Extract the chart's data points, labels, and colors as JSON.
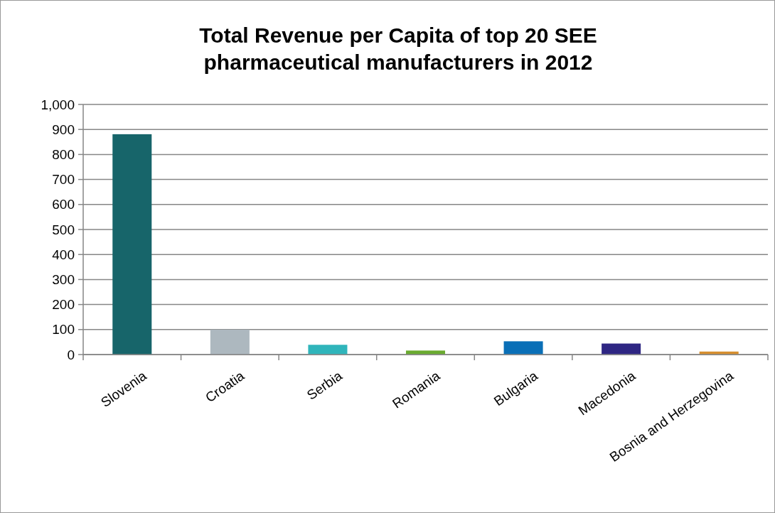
{
  "chart_data": {
    "type": "bar",
    "title": "Total Revenue per Capita of top 20 SEE pharmaceutical manufacturers in 2012",
    "categories": [
      "Slovenia",
      "Croatia",
      "Serbia",
      "Romania",
      "Bulgaria",
      "Macedonia",
      "Bosnia and Herzegovina"
    ],
    "values": [
      881,
      100,
      39,
      16,
      53,
      44,
      12
    ],
    "colors": [
      "#17656a",
      "#adb8bf",
      "#2fb5bb",
      "#6aab2f",
      "#0a6fb7",
      "#2e2683",
      "#d68e2e"
    ],
    "ylim": [
      0,
      1000
    ],
    "yticks": [
      0,
      {
        "value": 100,
        "label": "100"
      },
      {
        "value": 200,
        "label": "200"
      },
      {
        "value": 300,
        "label": "300"
      },
      {
        "value": 400,
        "label": "400"
      },
      {
        "value": 500,
        "label": "500"
      },
      {
        "value": 600,
        "label": "600"
      },
      {
        "value": 700,
        "label": "700"
      },
      {
        "value": 800,
        "label": "800"
      },
      {
        "value": 900,
        "label": "900"
      },
      {
        "value": 1000,
        "label": "1,000"
      }
    ],
    "grid": "y"
  }
}
